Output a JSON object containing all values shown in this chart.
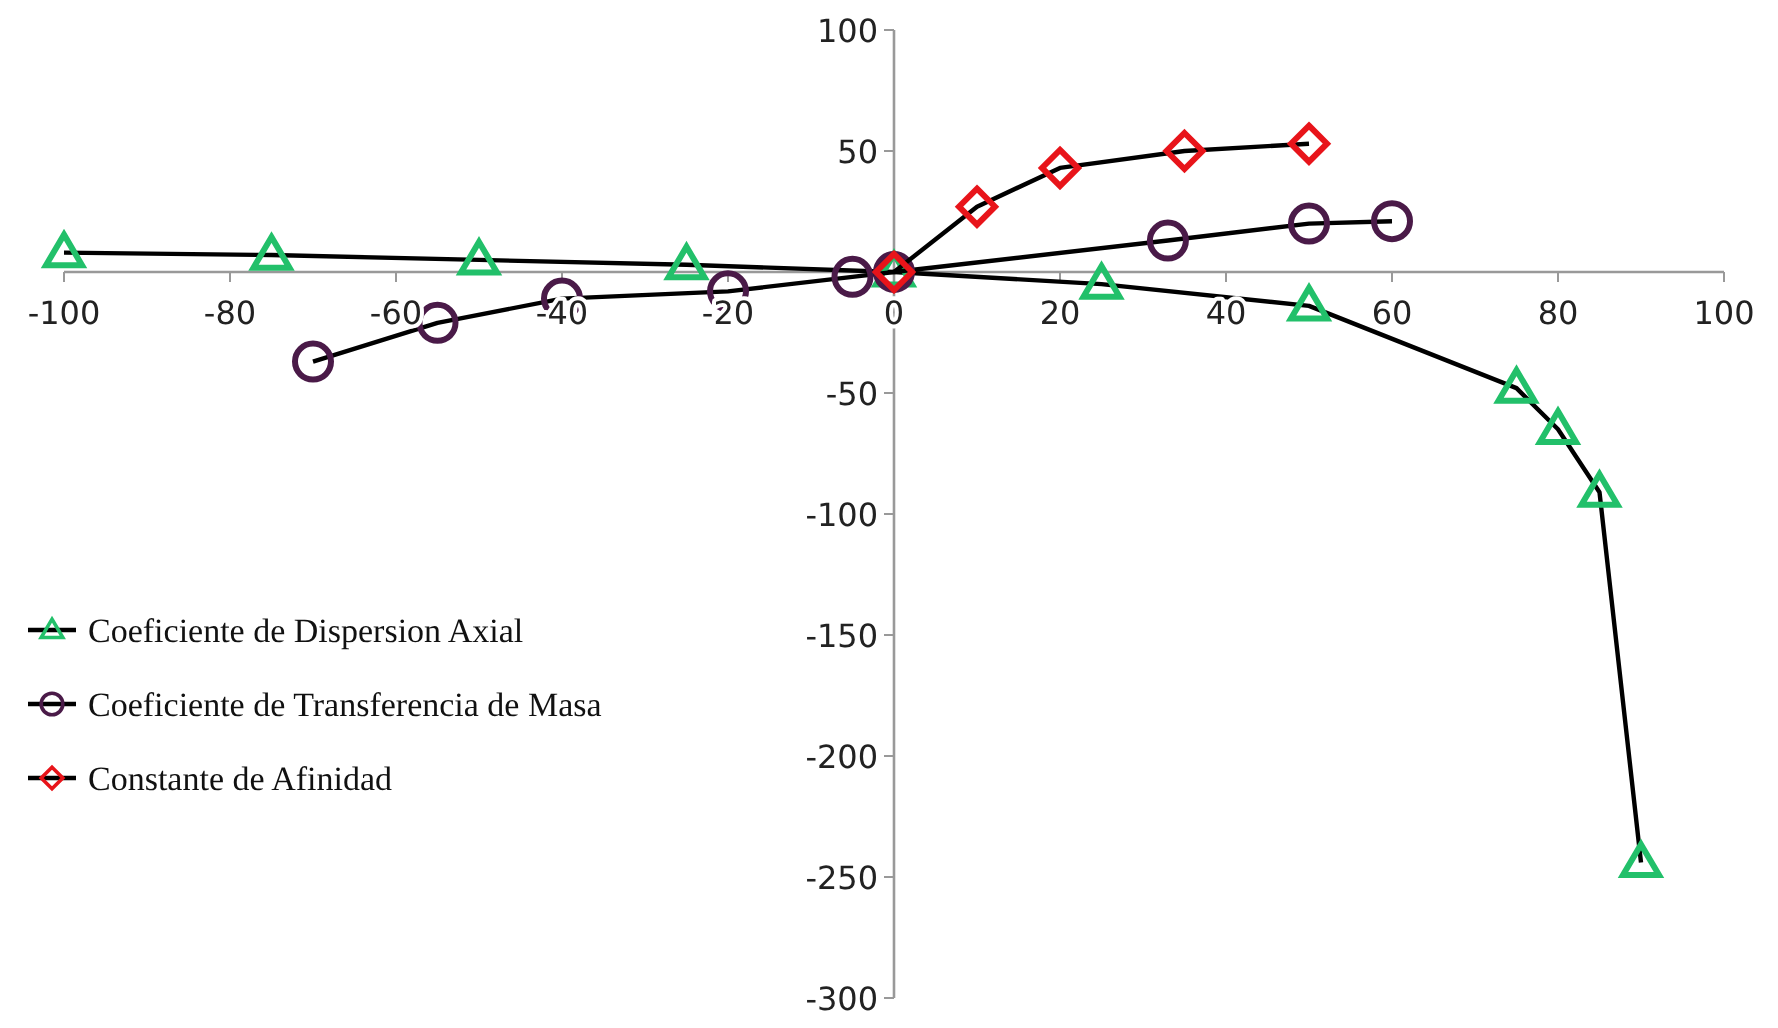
{
  "chart_data": {
    "type": "line",
    "xlim": [
      -100,
      100
    ],
    "xticks": [
      -100,
      -80,
      -60,
      -40,
      -20,
      0,
      20,
      40,
      60,
      80,
      100
    ],
    "ylim": [
      -300,
      100
    ],
    "yticks": [
      -300,
      -250,
      -200,
      -150,
      -100,
      -50,
      50,
      100
    ],
    "grid": false,
    "legend": "left",
    "line_style": "solid",
    "series": [
      {
        "name": "Coeficiente de Dispersion Axial",
        "color": "#22c06a",
        "marker": "triangle",
        "x": [
          -100,
          -75,
          -50,
          -25,
          0,
          25,
          50,
          75,
          80,
          85,
          90
        ],
        "values": [
          8,
          7,
          5,
          3,
          0,
          -5,
          -14,
          -48,
          -65,
          -91,
          -244
        ]
      },
      {
        "name": "Coeficiente de Transferencia de Masa",
        "color": "#4a1a48",
        "marker": "circle",
        "x": [
          -70,
          -55,
          -40,
          -20,
          -5,
          0,
          33,
          50,
          60
        ],
        "values": [
          -37,
          -21,
          -11,
          -8,
          -2,
          0,
          13,
          20,
          21
        ]
      },
      {
        "name": "Constante de Afinidad",
        "color": "#e8141a",
        "marker": "diamond",
        "x": [
          0,
          10,
          20,
          35,
          50
        ],
        "values": [
          0,
          27,
          43,
          50,
          53
        ]
      }
    ]
  }
}
